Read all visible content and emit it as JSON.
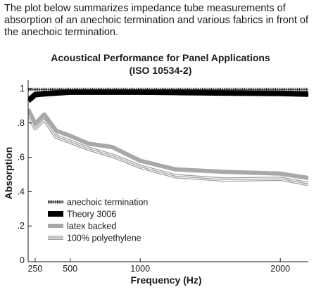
{
  "intro_text": "The plot below summarizes impedance tube measurements of absorption of an anechoic termination and various fabrics in front of the anechoic termination.",
  "chart_data": {
    "type": "line",
    "title": "Acoustical Performance for Panel Applications",
    "subtitle": "(ISO 10534-2)",
    "xlabel": "Frequency (Hz)",
    "ylabel": "Absorption",
    "xlim": [
      200,
      2200
    ],
    "ylim": [
      0,
      1
    ],
    "xticks": [
      250,
      500,
      1000,
      2000
    ],
    "xtick_labels": [
      "250",
      "500",
      "1000",
      "2000"
    ],
    "yticks": [
      0,
      0.2,
      0.4,
      0.6,
      0.8,
      1
    ],
    "ytick_labels": [
      "0",
      ".2",
      ".4",
      ".6",
      ".8",
      "1"
    ],
    "grid": false,
    "legend_position": "bottom-left",
    "x": [
      200,
      250,
      315,
      400,
      500,
      630,
      800,
      1000,
      1250,
      1600,
      2000,
      2200
    ],
    "series": [
      {
        "name": "anechoic termination",
        "style": "hatched",
        "values": [
          0.995,
          0.995,
          0.995,
          0.995,
          0.995,
          0.995,
          0.995,
          0.995,
          0.995,
          0.995,
          0.995,
          0.995
        ]
      },
      {
        "name": "Theory 3006",
        "style": "thick-black",
        "values": [
          0.93,
          0.965,
          0.97,
          0.975,
          0.98,
          0.98,
          0.98,
          0.98,
          0.978,
          0.975,
          0.972,
          0.968
        ]
      },
      {
        "name": "latex backed",
        "style": "thick-gray",
        "values": [
          0.88,
          0.795,
          0.85,
          0.755,
          0.725,
          0.68,
          0.66,
          0.58,
          0.53,
          0.515,
          0.505,
          0.48
        ]
      },
      {
        "name": "100% polyethylene",
        "style": "triple-line",
        "values": [
          0.86,
          0.77,
          0.825,
          0.72,
          0.69,
          0.65,
          0.61,
          0.545,
          0.49,
          0.47,
          0.475,
          0.445
        ]
      }
    ]
  }
}
